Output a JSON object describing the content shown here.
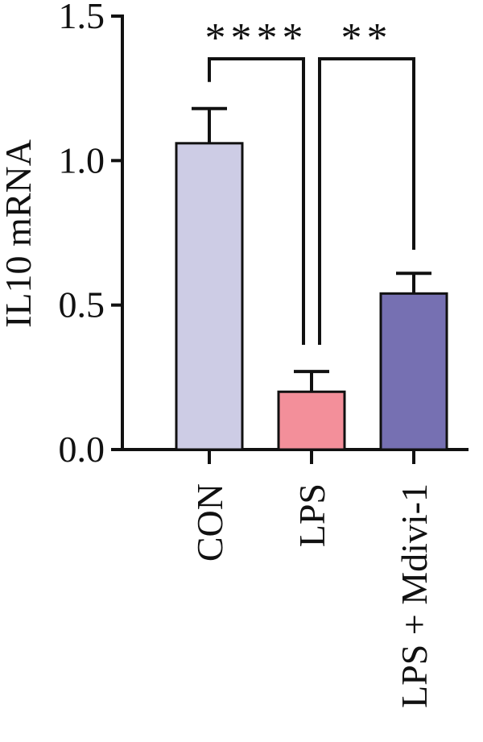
{
  "chart_data": {
    "type": "bar",
    "ylabel": "IL10 mRNA",
    "ylim": [
      0,
      1.5
    ],
    "yticks": [
      "0.0",
      "0.5",
      "1.0",
      "1.5"
    ],
    "categories": [
      "CON",
      "LPS",
      "LPS + Mdivi-1"
    ],
    "values": [
      1.06,
      0.2,
      0.54
    ],
    "errors": [
      0.12,
      0.07,
      0.07
    ],
    "colors": [
      "#cdcce5",
      "#f38f9a",
      "#7670b2"
    ],
    "significance": [
      {
        "from": 0,
        "to": 1,
        "label": "****"
      },
      {
        "from": 1,
        "to": 2,
        "label": "**"
      }
    ],
    "grid": false
  }
}
